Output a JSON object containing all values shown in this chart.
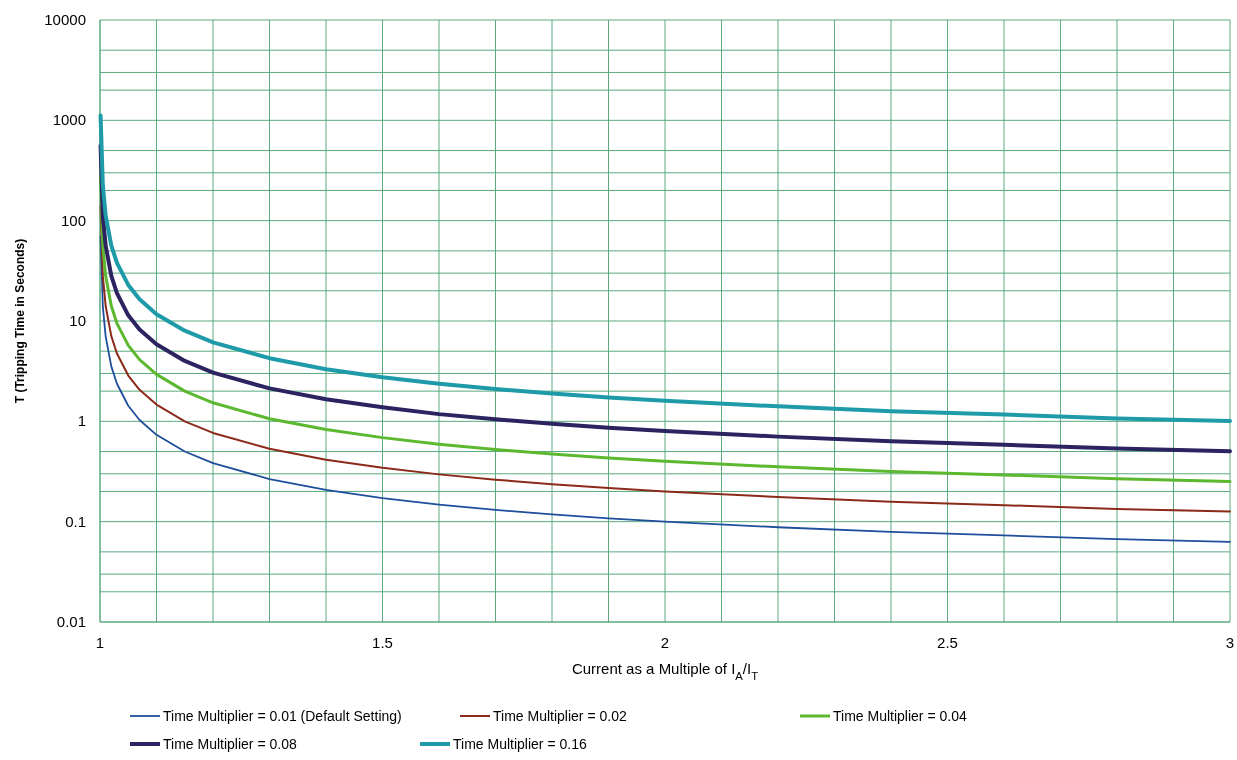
{
  "chart_data": {
    "type": "line",
    "xlabel": "Current as a Multiple of I$_{A}$/I$_{T}$",
    "ylabel": "T (Tripping Time in Seconds)",
    "x": [
      1.001,
      1.005,
      1.01,
      1.02,
      1.03,
      1.05,
      1.07,
      1.1,
      1.15,
      1.2,
      1.3,
      1.4,
      1.5,
      1.6,
      1.7,
      1.8,
      1.9,
      2.0,
      2.2,
      2.4,
      2.6,
      2.8,
      3.0
    ],
    "series": [
      {
        "name": "Time Multiplier = 0.01 (Default Setting)",
        "color": "#1f4e9c",
        "values": [
          70,
          14.0,
          7.04,
          3.53,
          2.37,
          1.43,
          1.03,
          0.734,
          0.5,
          0.383,
          0.266,
          0.207,
          0.172,
          0.148,
          0.131,
          0.118,
          0.108,
          0.1,
          0.088,
          0.079,
          0.073,
          0.067,
          0.063
        ]
      },
      {
        "name": "Time Multiplier = 0.02",
        "color": "#8b2a1a",
        "values": [
          140,
          28.0,
          14.1,
          7.06,
          4.74,
          2.86,
          2.06,
          1.47,
          1.0,
          0.766,
          0.532,
          0.414,
          0.344,
          0.296,
          0.262,
          0.236,
          0.216,
          0.2,
          0.176,
          0.158,
          0.146,
          0.134,
          0.126
        ]
      },
      {
        "name": "Time Multiplier = 0.04",
        "color": "#5cb82e",
        "values": [
          280,
          56.0,
          28.2,
          14.1,
          9.48,
          5.72,
          4.12,
          2.94,
          2.0,
          1.53,
          1.06,
          0.828,
          0.688,
          0.592,
          0.524,
          0.472,
          0.432,
          0.4,
          0.352,
          0.316,
          0.292,
          0.268,
          0.252
        ]
      },
      {
        "name": "Time Multiplier = 0.08",
        "color": "#2b2461",
        "values": [
          560,
          112,
          56.3,
          28.2,
          19.0,
          11.4,
          8.24,
          5.87,
          4.0,
          3.06,
          2.13,
          1.66,
          1.38,
          1.18,
          1.05,
          0.944,
          0.864,
          0.8,
          0.704,
          0.632,
          0.584,
          0.536,
          0.504
        ]
      },
      {
        "name": "Time Multiplier = 0.16",
        "color": "#1e9aa8",
        "values": [
          1120,
          224,
          113,
          56.5,
          37.9,
          22.9,
          16.5,
          11.7,
          8.0,
          6.13,
          4.26,
          3.31,
          2.75,
          2.37,
          2.1,
          1.89,
          1.73,
          1.6,
          1.41,
          1.26,
          1.17,
          1.07,
          1.01
        ]
      }
    ],
    "log": "y",
    "xlim": [
      1,
      3
    ],
    "ylim": [
      0.01,
      10000
    ],
    "xticks": [
      1,
      {
        "value": 1.1,
        "label": null
      },
      {
        "value": 1.2,
        "label": null
      },
      {
        "value": 1.3,
        "label": null
      },
      {
        "value": 1.4,
        "label": null
      },
      1.5,
      {
        "value": 1.6,
        "label": null
      },
      {
        "value": 1.7,
        "label": null
      },
      {
        "value": 1.8,
        "label": null
      },
      {
        "value": 1.9,
        "label": null
      },
      2,
      {
        "value": 2.1,
        "label": null
      },
      {
        "value": 2.2,
        "label": null
      },
      {
        "value": 2.3,
        "label": null
      },
      {
        "value": 2.4,
        "label": null
      },
      2.5,
      {
        "value": 2.6,
        "label": null
      },
      {
        "value": 2.7,
        "label": null
      },
      {
        "value": 2.8,
        "label": null
      },
      {
        "value": 2.9,
        "label": null
      },
      3
    ],
    "yticks": [
      0.01,
      {
        "value": 0.02,
        "label": null
      },
      {
        "value": 0.03,
        "label": null
      },
      {
        "value": 0.05,
        "label": null
      },
      0.1,
      {
        "value": 0.2,
        "label": null
      },
      {
        "value": 0.3,
        "label": null
      },
      {
        "value": 0.5,
        "label": null
      },
      1,
      {
        "value": 2,
        "label": null
      },
      {
        "value": 3,
        "label": null
      },
      {
        "value": 5,
        "label": null
      },
      10,
      {
        "value": 20,
        "label": null
      },
      {
        "value": 30,
        "label": null
      },
      {
        "value": 50,
        "label": null
      },
      100,
      {
        "value": 200,
        "label": null
      },
      {
        "value": 300,
        "label": null
      },
      {
        "value": 500,
        "label": null
      },
      1000,
      {
        "value": 2000,
        "label": null
      },
      {
        "value": 3000,
        "label": null
      },
      {
        "value": 5000,
        "label": null
      },
      10000
    ],
    "grid": true,
    "legend": "bottom"
  }
}
